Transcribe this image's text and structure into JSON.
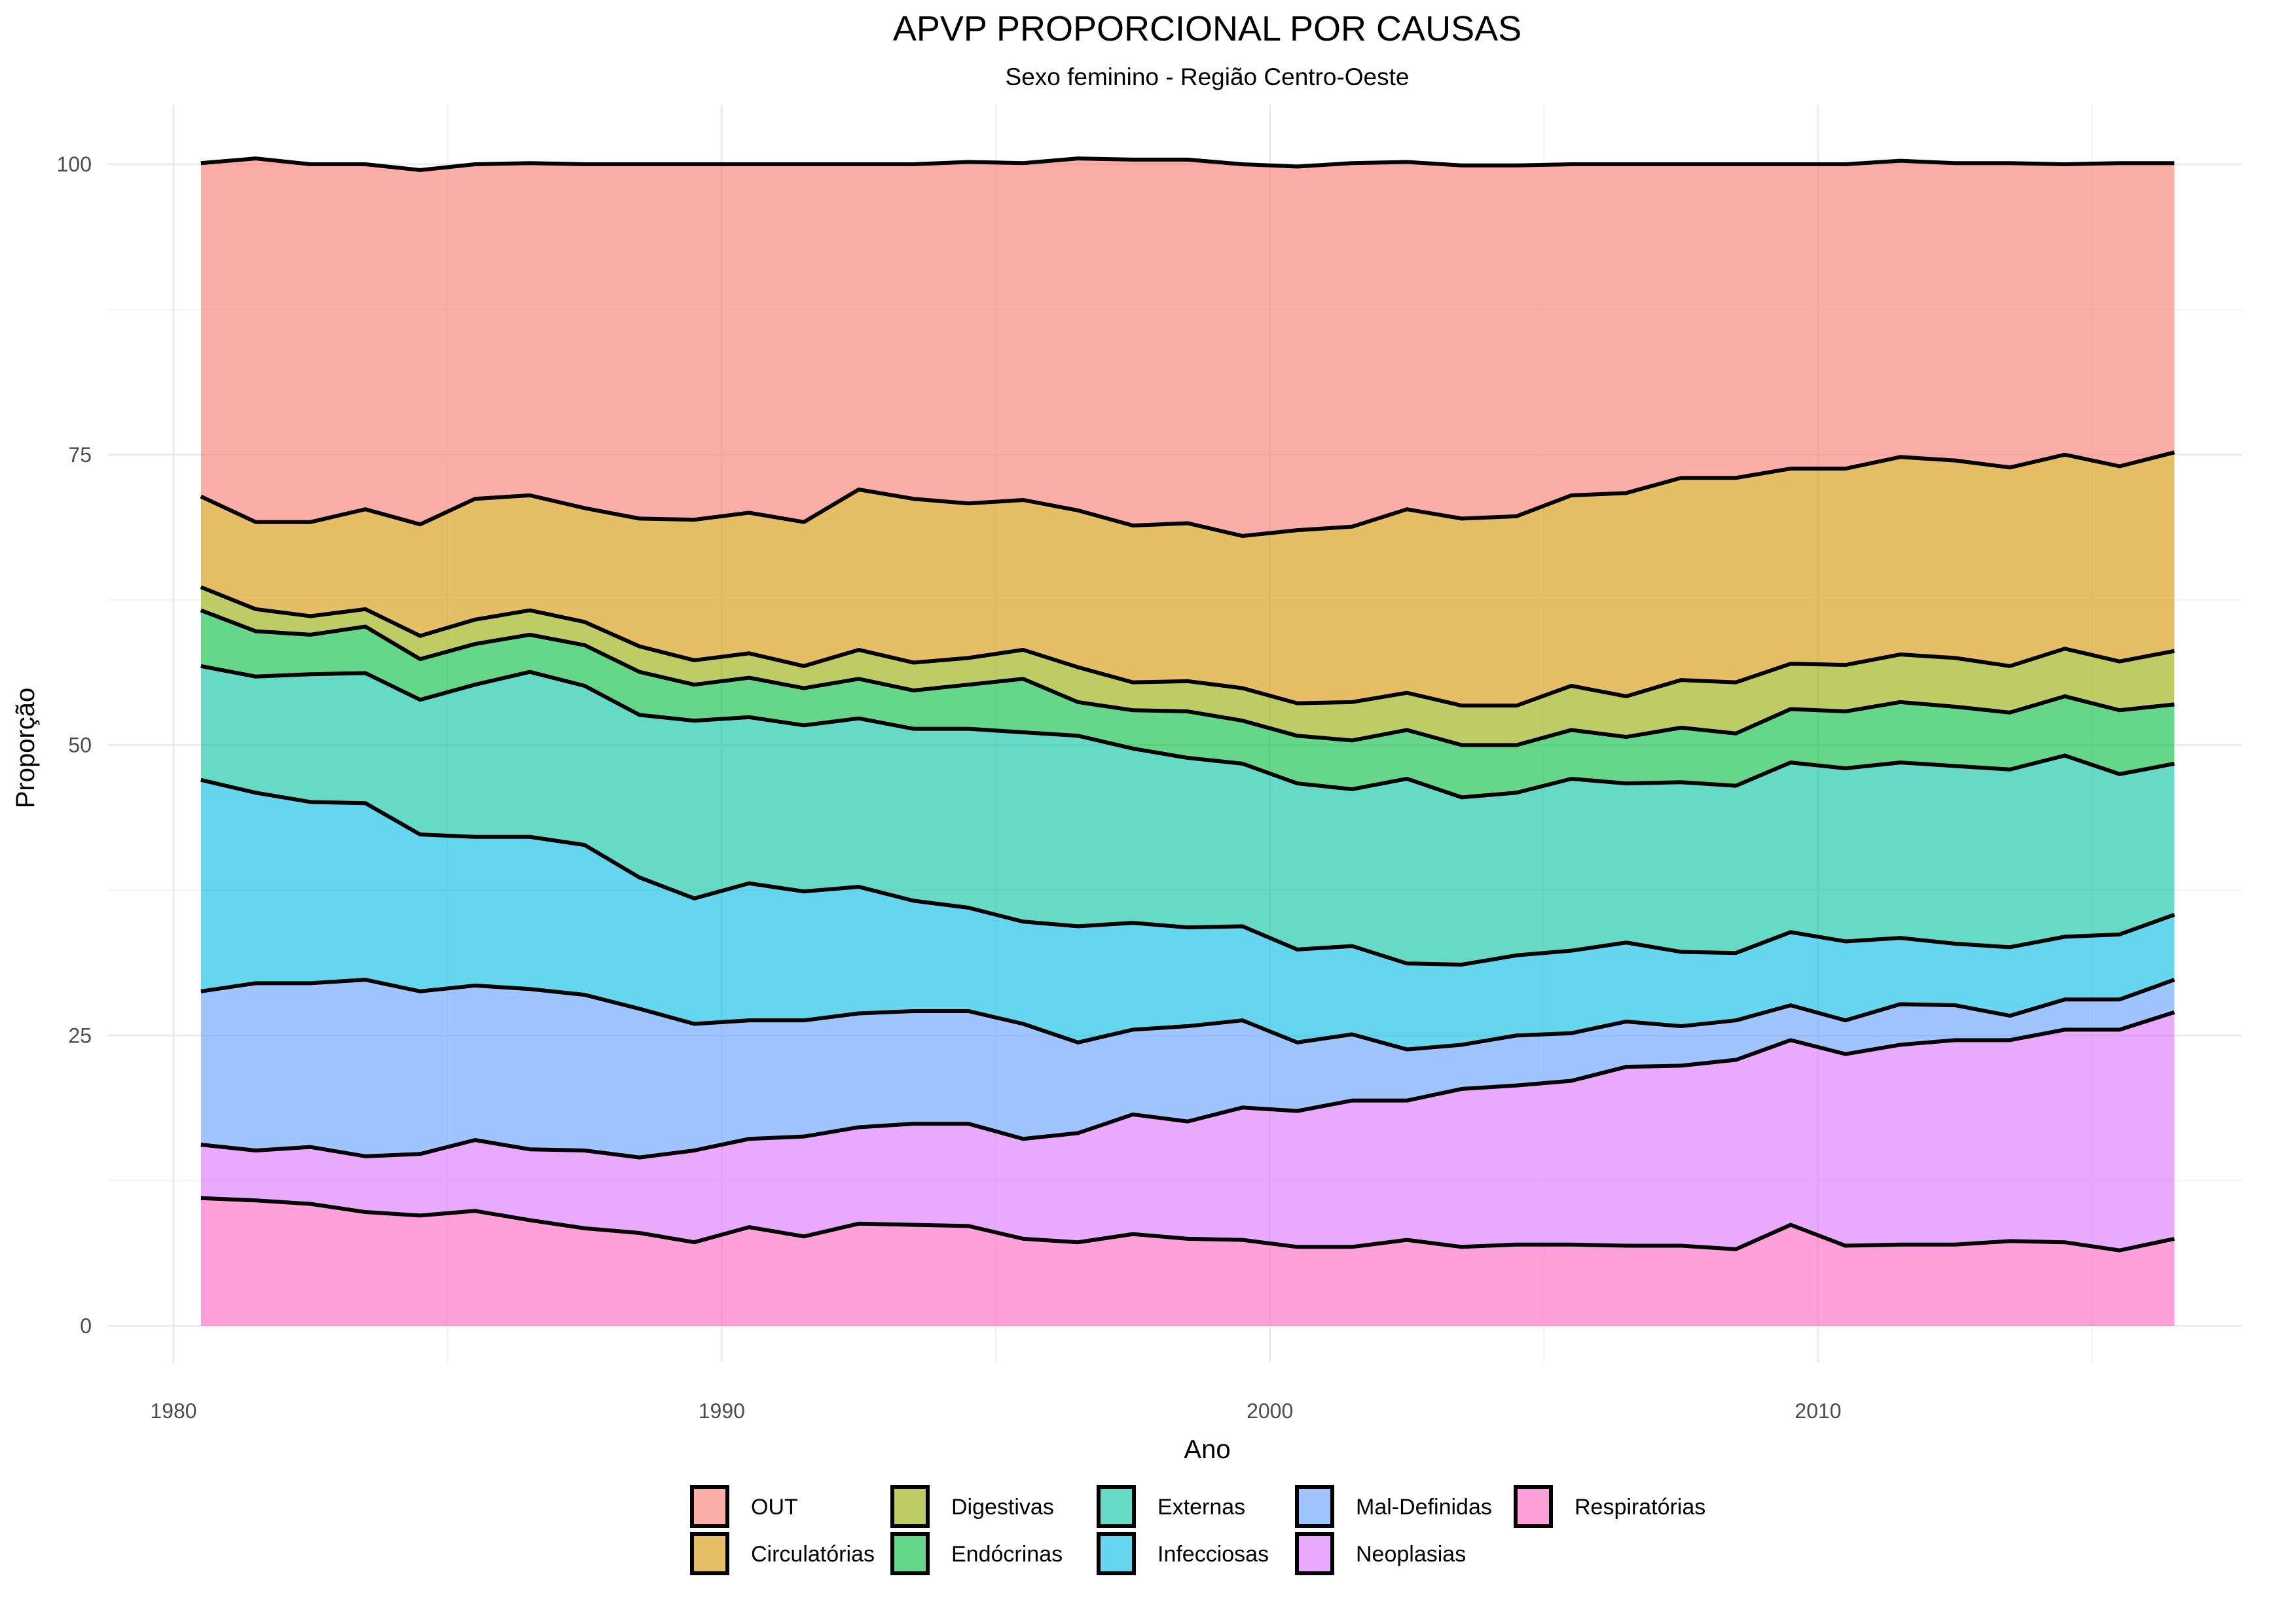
{
  "chart_data": {
    "type": "area",
    "stacked": true,
    "title": "APVP PROPORCIONAL POR CAUSAS",
    "subtitle": "Sexo feminino - Região Centro-Oeste",
    "xlabel": "Ano",
    "ylabel": "Proporção",
    "xlim": [
      1980,
      2017
    ],
    "ylim": [
      0,
      100
    ],
    "x_ticks": [
      "1980",
      "1990",
      "2000",
      "2010"
    ],
    "y_ticks": [
      "0",
      "25",
      "50",
      "75",
      "100"
    ],
    "grid": true,
    "legend_position": "bottom",
    "x": [
      1980.5,
      1981.5,
      1982.5,
      1983.5,
      1984.5,
      1985.5,
      1986.5,
      1987.5,
      1988.5,
      1989.5,
      1990.5,
      1991.5,
      1992.5,
      1993.5,
      1994.5,
      1995.5,
      1996.5,
      1997.5,
      1998.5,
      1999.5,
      2000.5,
      2001.5,
      2002.5,
      2003.5,
      2004.5,
      2005.5,
      2006.5,
      2007.5,
      2008.5,
      2009.5,
      2010.5,
      2011.5,
      2012.5,
      2013.5,
      2014.5,
      2015.5,
      2016.5
    ],
    "series": [
      {
        "name": "Respiratórias",
        "color": "#ff61c3",
        "values": [
          11.0,
          10.8,
          10.5,
          9.8,
          9.5,
          9.9,
          9.1,
          8.4,
          8.0,
          7.2,
          8.5,
          7.7,
          8.8,
          8.7,
          8.6,
          7.5,
          7.2,
          7.9,
          7.5,
          7.4,
          6.8,
          6.8,
          7.4,
          6.8,
          7.0,
          7.0,
          6.9,
          6.9,
          6.6,
          8.7,
          6.9,
          7.0,
          7.0,
          7.3,
          7.2,
          6.5,
          7.5
        ]
      },
      {
        "name": "Neoplasias",
        "color": "#db72fb",
        "values": [
          4.6,
          4.3,
          4.9,
          4.8,
          5.3,
          6.1,
          6.1,
          6.7,
          6.5,
          7.9,
          7.6,
          8.6,
          8.3,
          8.7,
          8.8,
          8.6,
          9.4,
          10.3,
          10.1,
          11.4,
          11.7,
          12.6,
          12.0,
          13.6,
          13.7,
          14.1,
          15.4,
          15.5,
          16.3,
          15.9,
          16.5,
          17.2,
          17.6,
          17.3,
          18.3,
          19.0,
          19.5
        ]
      },
      {
        "name": "Mal-Definidas",
        "color": "#619cff",
        "values": [
          13.2,
          14.4,
          14.1,
          15.2,
          14.0,
          13.3,
          13.8,
          13.4,
          12.8,
          10.9,
          10.2,
          10.0,
          9.8,
          9.7,
          9.7,
          9.9,
          7.8,
          7.3,
          8.2,
          7.5,
          5.9,
          5.7,
          4.4,
          3.8,
          4.3,
          4.1,
          3.9,
          3.4,
          3.4,
          3.0,
          2.9,
          3.5,
          3.0,
          2.1,
          2.6,
          2.6,
          2.8
        ]
      },
      {
        "name": "Infecciosas",
        "color": "#00b9e3",
        "values": [
          18.2,
          16.4,
          15.6,
          15.2,
          13.5,
          12.8,
          13.1,
          12.9,
          11.3,
          10.8,
          11.8,
          11.1,
          10.9,
          9.5,
          8.9,
          8.8,
          10.0,
          9.2,
          8.5,
          8.1,
          8.0,
          7.6,
          7.4,
          6.9,
          6.9,
          7.1,
          6.8,
          6.4,
          5.8,
          6.3,
          6.8,
          5.7,
          5.3,
          5.9,
          5.4,
          5.6,
          5.6
        ]
      },
      {
        "name": "Externas",
        "color": "#00c19f",
        "values": [
          9.8,
          10.0,
          11.0,
          11.2,
          11.6,
          13.1,
          14.2,
          13.7,
          14.0,
          15.3,
          14.3,
          14.3,
          14.5,
          14.8,
          15.4,
          16.3,
          16.4,
          15.0,
          14.6,
          14.0,
          14.3,
          13.5,
          15.9,
          14.4,
          14.0,
          14.8,
          13.7,
          14.6,
          14.4,
          14.6,
          14.9,
          15.1,
          15.3,
          15.3,
          15.6,
          13.8,
          13.0
        ]
      },
      {
        "name": "Endócrinas",
        "color": "#00ba38",
        "values": [
          4.8,
          3.9,
          3.4,
          4.0,
          3.5,
          3.5,
          3.2,
          3.5,
          3.7,
          3.1,
          3.4,
          3.2,
          3.4,
          3.3,
          3.8,
          4.6,
          2.9,
          3.3,
          4.0,
          3.7,
          4.1,
          4.2,
          4.2,
          4.5,
          4.1,
          4.2,
          4.0,
          4.7,
          4.5,
          4.6,
          4.9,
          5.2,
          5.1,
          4.9,
          5.1,
          5.5,
          5.1
        ]
      },
      {
        "name": "Digestivas",
        "color": "#93aa00",
        "values": [
          2.0,
          1.9,
          1.6,
          1.5,
          2.0,
          2.1,
          2.1,
          2.0,
          2.2,
          2.1,
          2.1,
          1.9,
          2.5,
          2.4,
          2.3,
          2.5,
          3.0,
          2.4,
          2.6,
          2.8,
          2.8,
          3.3,
          3.2,
          3.4,
          3.4,
          3.8,
          3.5,
          4.1,
          4.4,
          3.9,
          4.0,
          4.1,
          4.2,
          4.0,
          4.1,
          4.2,
          4.6
        ]
      },
      {
        "name": "Circulatórias",
        "color": "#d39200",
        "values": [
          7.8,
          7.5,
          8.1,
          8.6,
          9.6,
          10.4,
          9.9,
          9.8,
          11.0,
          12.1,
          12.1,
          12.4,
          13.8,
          14.1,
          13.3,
          12.9,
          13.5,
          13.5,
          13.6,
          13.1,
          14.9,
          15.1,
          15.8,
          16.1,
          16.3,
          16.4,
          17.5,
          17.4,
          17.6,
          16.8,
          16.9,
          17.0,
          17.0,
          17.1,
          16.7,
          16.8,
          17.1
        ]
      },
      {
        "name": "OUT",
        "color": "#f8766d",
        "values": [
          28.7,
          31.3,
          30.8,
          29.7,
          30.5,
          28.8,
          28.6,
          29.6,
          30.5,
          30.6,
          30.0,
          30.8,
          28.0,
          28.8,
          29.4,
          29.0,
          30.3,
          31.5,
          31.3,
          32.0,
          31.3,
          31.3,
          29.9,
          30.4,
          30.2,
          28.5,
          28.3,
          27.0,
          27.0,
          26.2,
          26.2,
          25.5,
          25.6,
          26.2,
          25.0,
          26.1,
          24.9
        ]
      }
    ]
  },
  "legend": {
    "items": [
      {
        "name": "OUT",
        "color": "#f8766d"
      },
      {
        "name": "Circulatórias",
        "color": "#d39200"
      },
      {
        "name": "Digestivas",
        "color": "#93aa00"
      },
      {
        "name": "Endócrinas",
        "color": "#00ba38"
      },
      {
        "name": "Externas",
        "color": "#00c19f"
      },
      {
        "name": "Infecciosas",
        "color": "#00b9e3"
      },
      {
        "name": "Mal-Definidas",
        "color": "#619cff"
      },
      {
        "name": "Neoplasias",
        "color": "#db72fb"
      },
      {
        "name": "Respiratórias",
        "color": "#ff61c3"
      }
    ]
  }
}
